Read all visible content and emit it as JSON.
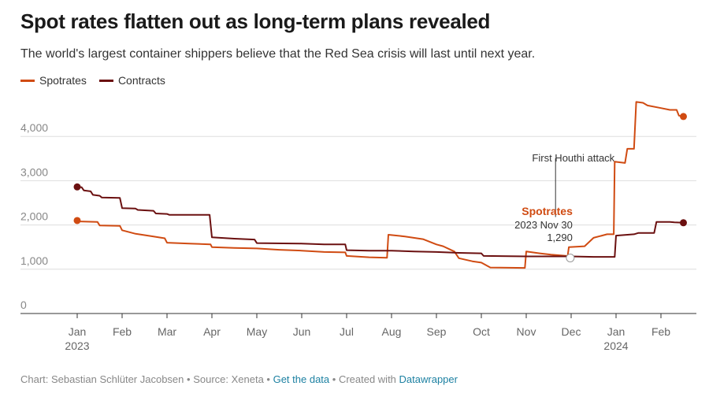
{
  "title": "Spot rates flatten out as long-term plans revealed",
  "subtitle": "The world's largest container shippers believe that the Red Sea crisis will last until next year.",
  "legend": [
    {
      "label": "Spotrates",
      "color": "#d04b12"
    },
    {
      "label": "Contracts",
      "color": "#6b1010"
    }
  ],
  "footer": {
    "chart_by": "Chart: Sebastian Schlüter Jacobsen",
    "sep1": " • ",
    "source": "Source: Xeneta",
    "sep2": " • ",
    "get_data": "Get the data",
    "sep3": " • ",
    "created_with": "Created with ",
    "datawrapper": "Datawrapper"
  },
  "chart_data": {
    "type": "line",
    "x_ticks": [
      {
        "label": "Jan",
        "sub": "2023",
        "x": 0
      },
      {
        "label": "Feb",
        "sub": "",
        "x": 1
      },
      {
        "label": "Mar",
        "sub": "",
        "x": 2
      },
      {
        "label": "Apr",
        "sub": "",
        "x": 3
      },
      {
        "label": "May",
        "sub": "",
        "x": 4
      },
      {
        "label": "Jun",
        "sub": "",
        "x": 5
      },
      {
        "label": "Jul",
        "sub": "",
        "x": 6
      },
      {
        "label": "Aug",
        "sub": "",
        "x": 7
      },
      {
        "label": "Sep",
        "sub": "",
        "x": 8
      },
      {
        "label": "Oct",
        "sub": "",
        "x": 9
      },
      {
        "label": "Nov",
        "sub": "",
        "x": 10
      },
      {
        "label": "Dec",
        "sub": "",
        "x": 11
      },
      {
        "label": "Jan",
        "sub": "2024",
        "x": 12
      },
      {
        "label": "Feb",
        "sub": "",
        "x": 13
      }
    ],
    "y_ticks": [
      {
        "label": "0",
        "value": 0
      },
      {
        "label": "1,000",
        "value": 1000
      },
      {
        "label": "2,000",
        "value": 2000
      },
      {
        "label": "3,000",
        "value": 3000
      },
      {
        "label": "4,000",
        "value": 4000
      }
    ],
    "xlim": [
      -0.1,
      13.55
    ],
    "ylim": [
      0,
      4900
    ],
    "series": [
      {
        "name": "Spotrates",
        "color": "#d04b12",
        "points": [
          [
            0,
            2100
          ],
          [
            0.03,
            2120
          ],
          [
            0.05,
            2080
          ],
          [
            0.45,
            2070
          ],
          [
            0.5,
            1990
          ],
          [
            0.95,
            1980
          ],
          [
            1.0,
            1880
          ],
          [
            1.3,
            1800
          ],
          [
            1.7,
            1740
          ],
          [
            1.95,
            1700
          ],
          [
            2.0,
            1600
          ],
          [
            2.5,
            1580
          ],
          [
            2.97,
            1560
          ],
          [
            3.0,
            1500
          ],
          [
            3.5,
            1480
          ],
          [
            4.0,
            1470
          ],
          [
            4.5,
            1440
          ],
          [
            5.0,
            1420
          ],
          [
            5.5,
            1390
          ],
          [
            5.97,
            1380
          ],
          [
            6.0,
            1300
          ],
          [
            6.5,
            1270
          ],
          [
            6.9,
            1260
          ],
          [
            6.93,
            1780
          ],
          [
            7.3,
            1740
          ],
          [
            7.7,
            1680
          ],
          [
            8.0,
            1560
          ],
          [
            8.15,
            1520
          ],
          [
            8.4,
            1400
          ],
          [
            8.5,
            1250
          ],
          [
            8.8,
            1180
          ],
          [
            9.0,
            1150
          ],
          [
            9.2,
            1040
          ],
          [
            9.97,
            1030
          ],
          [
            10.0,
            1400
          ],
          [
            10.3,
            1360
          ],
          [
            10.55,
            1330
          ],
          [
            10.9,
            1300
          ],
          [
            10.92,
            1280
          ],
          [
            10.95,
            1500
          ],
          [
            11.3,
            1520
          ],
          [
            11.5,
            1710
          ],
          [
            11.8,
            1790
          ],
          [
            11.95,
            1790
          ],
          [
            11.97,
            3430
          ],
          [
            12.2,
            3400
          ],
          [
            12.25,
            3720
          ],
          [
            12.4,
            3720
          ],
          [
            12.45,
            4780
          ],
          [
            12.6,
            4760
          ],
          [
            12.7,
            4700
          ],
          [
            13.0,
            4640
          ],
          [
            13.2,
            4600
          ],
          [
            13.35,
            4600
          ],
          [
            13.4,
            4470
          ],
          [
            13.5,
            4450
          ]
        ],
        "end_label": "",
        "last_value": 4450
      },
      {
        "name": "Contracts",
        "color": "#6b1010",
        "points": [
          [
            0,
            2860
          ],
          [
            0.1,
            2850
          ],
          [
            0.15,
            2780
          ],
          [
            0.3,
            2760
          ],
          [
            0.35,
            2680
          ],
          [
            0.5,
            2660
          ],
          [
            0.55,
            2620
          ],
          [
            0.95,
            2610
          ],
          [
            1.0,
            2380
          ],
          [
            1.3,
            2370
          ],
          [
            1.35,
            2340
          ],
          [
            1.7,
            2320
          ],
          [
            1.75,
            2260
          ],
          [
            2.0,
            2250
          ],
          [
            2.05,
            2230
          ],
          [
            2.95,
            2230
          ],
          [
            3.0,
            1720
          ],
          [
            3.5,
            1690
          ],
          [
            3.95,
            1670
          ],
          [
            4.0,
            1590
          ],
          [
            5.0,
            1580
          ],
          [
            5.5,
            1560
          ],
          [
            5.97,
            1560
          ],
          [
            6.0,
            1430
          ],
          [
            6.5,
            1420
          ],
          [
            7.0,
            1420
          ],
          [
            7.5,
            1400
          ],
          [
            8.0,
            1390
          ],
          [
            8.5,
            1370
          ],
          [
            9.0,
            1360
          ],
          [
            9.05,
            1300
          ],
          [
            10.0,
            1290
          ],
          [
            10.5,
            1290
          ],
          [
            11.0,
            1290
          ],
          [
            11.5,
            1280
          ],
          [
            11.97,
            1280
          ],
          [
            12.0,
            1760
          ],
          [
            12.4,
            1790
          ],
          [
            12.5,
            1820
          ],
          [
            12.85,
            1820
          ],
          [
            12.9,
            2070
          ],
          [
            13.2,
            2070
          ],
          [
            13.3,
            2060
          ],
          [
            13.5,
            2050
          ]
        ],
        "end_label": "",
        "last_value": 2050
      }
    ],
    "annotation": {
      "text": "First Houthi attack",
      "x": 10.6,
      "y_top": 3400,
      "y_bottom": 2250
    },
    "tooltip": {
      "series": "Spotrates",
      "date": "2023 Nov 30",
      "value": "1,290",
      "x": 10.98,
      "y": 1290
    },
    "grid": true
  }
}
